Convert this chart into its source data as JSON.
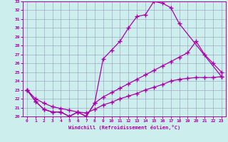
{
  "xlabel": "Windchill (Refroidissement éolien,°C)",
  "xlim": [
    -0.5,
    23.5
  ],
  "ylim": [
    20,
    33
  ],
  "xticks": [
    0,
    1,
    2,
    3,
    4,
    5,
    6,
    7,
    8,
    9,
    10,
    11,
    12,
    13,
    14,
    15,
    16,
    17,
    18,
    19,
    20,
    21,
    22,
    23
  ],
  "yticks": [
    20,
    21,
    22,
    23,
    24,
    25,
    26,
    27,
    28,
    29,
    30,
    31,
    32,
    33
  ],
  "bg_color": "#cceeed",
  "line_color": "#aa00aa",
  "grid_color": "#9999bb",
  "line1_x": [
    0,
    1,
    2,
    3,
    4,
    5,
    6,
    7,
    8,
    9,
    10,
    11,
    12,
    13,
    14,
    15,
    16,
    17,
    18,
    23
  ],
  "line1_y": [
    23.0,
    21.7,
    20.8,
    20.5,
    20.5,
    20.0,
    20.5,
    20.0,
    21.5,
    26.5,
    27.5,
    28.5,
    30.0,
    31.3,
    31.5,
    33.0,
    32.8,
    32.3,
    30.5,
    24.5
  ],
  "line2_x": [
    0,
    1,
    2,
    3,
    4,
    5,
    6,
    7,
    8,
    9,
    10,
    11,
    12,
    13,
    14,
    15,
    16,
    17,
    18,
    19,
    20,
    21,
    22,
    23
  ],
  "line2_y": [
    23.0,
    21.7,
    20.8,
    20.5,
    20.5,
    20.0,
    20.5,
    20.0,
    21.5,
    22.2,
    22.7,
    23.2,
    23.7,
    24.2,
    24.7,
    25.2,
    25.7,
    26.2,
    26.7,
    27.2,
    28.5,
    27.0,
    26.0,
    25.0
  ],
  "line3_x": [
    0,
    1,
    2,
    3,
    4,
    5,
    6,
    7,
    8,
    9,
    10,
    11,
    12,
    13,
    14,
    15,
    16,
    17,
    18,
    19,
    20,
    21,
    22,
    23
  ],
  "line3_y": [
    23.0,
    22.0,
    21.5,
    21.1,
    20.9,
    20.7,
    20.5,
    20.4,
    20.8,
    21.3,
    21.6,
    22.0,
    22.3,
    22.6,
    23.0,
    23.3,
    23.6,
    24.0,
    24.2,
    24.3,
    24.4,
    24.4,
    24.4,
    24.5
  ]
}
